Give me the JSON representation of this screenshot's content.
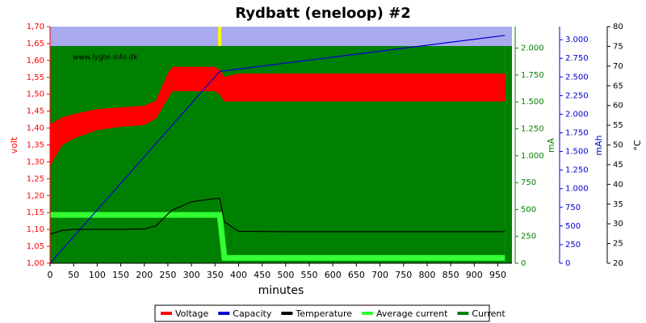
{
  "chart_data": {
    "type": "line",
    "title": "Rydbatt (eneloop) #2",
    "annotation": "www.lygte-info.dk",
    "x_label": "minutes",
    "y_label": "volt",
    "y2_label": "mA",
    "y3_label": "mAh",
    "y4_label": "°C",
    "background": "#aaaaee",
    "x": [
      0,
      25,
      50,
      100,
      150,
      200,
      225,
      250,
      260,
      300,
      350,
      360,
      370,
      400,
      500,
      600,
      700,
      800,
      900,
      965
    ],
    "xlim": [
      0,
      980
    ],
    "xticks": [
      0,
      50,
      100,
      150,
      200,
      250,
      300,
      350,
      400,
      450,
      500,
      550,
      600,
      650,
      700,
      750,
      800,
      850,
      900,
      950
    ],
    "ylim": [
      1.0,
      1.7
    ],
    "yticks": [
      {
        "value": 1.0,
        "label": "1,00"
      },
      {
        "value": 1.05,
        "label": "1,05"
      },
      {
        "value": 1.1,
        "label": "1,10"
      },
      {
        "value": 1.15,
        "label": "1,15"
      },
      {
        "value": 1.2,
        "label": "1,20"
      },
      {
        "value": 1.25,
        "label": "1,25"
      },
      {
        "value": 1.3,
        "label": "1,30"
      },
      {
        "value": 1.35,
        "label": "1,35"
      },
      {
        "value": 1.4,
        "label": "1,40"
      },
      {
        "value": 1.45,
        "label": "1,45"
      },
      {
        "value": 1.5,
        "label": "1,50"
      },
      {
        "value": 1.55,
        "label": "1,55"
      },
      {
        "value": 1.6,
        "label": "1,60"
      },
      {
        "value": 1.65,
        "label": "1,65"
      },
      {
        "value": 1.7,
        "label": "1,70"
      }
    ],
    "y2lim": [
      0,
      2200
    ],
    "y2ticks": [
      0,
      250,
      500,
      750,
      {
        "value": 1000,
        "label": "1.000"
      },
      {
        "value": 1250,
        "label": "1.250"
      },
      {
        "value": 1500,
        "label": "1.500"
      },
      {
        "value": 1750,
        "label": "1.750"
      },
      {
        "value": 2000,
        "label": "2.000"
      }
    ],
    "y3lim": [
      0,
      3175
    ],
    "y3ticks": [
      0,
      250,
      500,
      750,
      {
        "value": 1000,
        "label": "1.000"
      },
      {
        "value": 1250,
        "label": "1.250"
      },
      {
        "value": 1500,
        "label": "1.500"
      },
      {
        "value": 1750,
        "label": "1.750"
      },
      {
        "value": 2000,
        "label": "2.000"
      },
      {
        "value": 2250,
        "label": "2.250"
      },
      {
        "value": 2500,
        "label": "2.500"
      },
      {
        "value": 2750,
        "label": "2.750"
      },
      {
        "value": 3000,
        "label": "3.000"
      }
    ],
    "y4lim": [
      20,
      80
    ],
    "y4ticks": [
      20,
      25,
      30,
      35,
      40,
      45,
      50,
      55,
      60,
      65,
      70,
      75,
      80
    ],
    "series": [
      {
        "name": "Voltage",
        "color": "#ff0000",
        "axis": "y",
        "style": "band",
        "high": [
          1.41,
          1.43,
          1.44,
          1.455,
          1.46,
          1.465,
          1.48,
          1.56,
          1.58,
          1.58,
          1.58,
          1.57,
          1.55,
          1.56,
          1.56,
          1.56,
          1.56,
          1.56,
          1.56,
          1.56
        ],
        "low": [
          1.29,
          1.35,
          1.37,
          1.395,
          1.405,
          1.41,
          1.43,
          1.49,
          1.51,
          1.51,
          1.51,
          1.5,
          1.48,
          1.48,
          1.48,
          1.48,
          1.48,
          1.48,
          1.48,
          1.48
        ]
      },
      {
        "name": "Capacity",
        "color": "#0000cc",
        "axis": "y3",
        "style": "line",
        "values": [
          0,
          179,
          358,
          715,
          1073,
          1430,
          1609,
          1788,
          1859,
          2145,
          2503,
          2574,
          2582,
          2606,
          2686,
          2766,
          2846,
          2926,
          3006,
          3058
        ]
      },
      {
        "name": "Temperature",
        "color": "#000000",
        "axis": "y4",
        "style": "line",
        "values": [
          27.4,
          28.3,
          28.6,
          28.6,
          28.6,
          28.7,
          29.5,
          32.5,
          33.5,
          35.6,
          36.4,
          36.4,
          30.5,
          28.1,
          28.0,
          28.0,
          28.0,
          28.0,
          28.0,
          28.0
        ]
      },
      {
        "name": "Average current",
        "color": "#33ff33",
        "axis": "y2",
        "style": "thick",
        "values": [
          450,
          450,
          450,
          450,
          450,
          450,
          450,
          450,
          450,
          450,
          450,
          450,
          50,
          50,
          50,
          50,
          50,
          50,
          50,
          50
        ]
      },
      {
        "name": "Current",
        "color": "#008000",
        "axis": "y2",
        "style": "area",
        "values": [
          2020,
          2020,
          2020,
          2020,
          2020,
          2020,
          2020,
          2020,
          2020,
          2020,
          2020,
          2020,
          2020,
          2020,
          2020,
          2020,
          2020,
          2020,
          2020,
          2020
        ]
      }
    ]
  }
}
